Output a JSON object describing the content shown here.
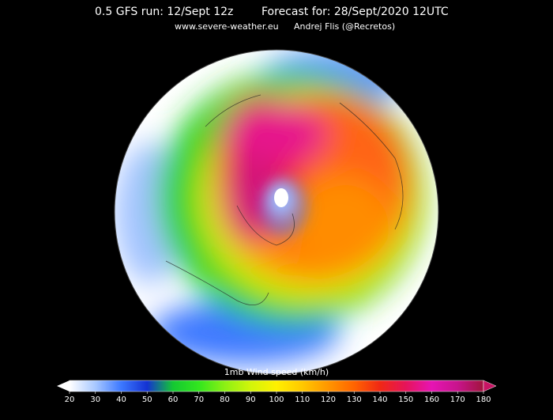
{
  "header": {
    "run": "0.5 GFS run: 12/Sept 12z",
    "forecast": "Forecast for: 28/Sept/2020 12UTC",
    "site": "www.severe-weather.eu",
    "author": "Andrej Flis (@Recretos)"
  },
  "legend": {
    "label": "1mb Wind speed (km/h)",
    "ticks": [
      20,
      30,
      40,
      50,
      60,
      70,
      80,
      90,
      100,
      110,
      120,
      130,
      140,
      150,
      160,
      170,
      180
    ]
  }
}
